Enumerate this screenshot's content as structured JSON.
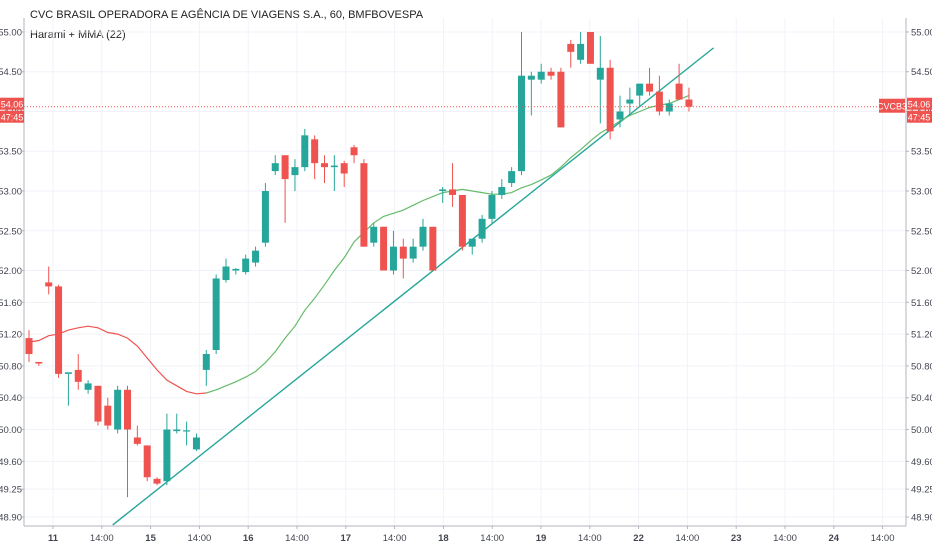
{
  "header": {
    "title": "CVC BRASIL OPERADORA E AGÊNCIA DE VIAGENS S.A., 60, BMFBOVESPA",
    "indicator": "Harami + MMA (22)"
  },
  "colors": {
    "up": "#26a69a",
    "down": "#ef5350",
    "ma_before": "#ef5350",
    "ma_after": "#66bb6a",
    "trendline": "#26a69a",
    "price_line": "#ef5350",
    "grid": "#f0f3fa"
  },
  "chart_data": {
    "type": "candlestick",
    "ylim": [
      48.9,
      55.05
    ],
    "yticks": [
      48.9,
      49.25,
      49.6,
      50.0,
      50.4,
      50.8,
      51.2,
      51.6,
      52.0,
      52.5,
      53.0,
      53.5,
      54.0,
      54.5,
      55.0
    ],
    "ytick_labels": [
      "48.90",
      "49.25",
      "49.60",
      "50.00",
      "50.40",
      "50.80",
      "51.20",
      "51.60",
      "52.00",
      "52.50",
      "53.00",
      "53.50",
      "54.00",
      "54.50",
      "55.00"
    ],
    "xtick_labels": [
      {
        "label": "11",
        "bold": true
      },
      {
        "label": "14:00",
        "bold": false
      },
      {
        "label": "15",
        "bold": true
      },
      {
        "label": "14:00",
        "bold": false
      },
      {
        "label": "16",
        "bold": true
      },
      {
        "label": "14:00",
        "bold": false
      },
      {
        "label": "17",
        "bold": true
      },
      {
        "label": "14:00",
        "bold": false
      },
      {
        "label": "18",
        "bold": true
      },
      {
        "label": "14:00",
        "bold": false
      },
      {
        "label": "19",
        "bold": true
      },
      {
        "label": "14:00",
        "bold": false
      },
      {
        "label": "22",
        "bold": true
      },
      {
        "label": "14:00",
        "bold": false
      },
      {
        "label": "23",
        "bold": true
      },
      {
        "label": "14:00",
        "bold": false
      },
      {
        "label": "24",
        "bold": true
      },
      {
        "label": "14:00",
        "bold": false
      }
    ],
    "candles": [
      {
        "o": 51.15,
        "h": 51.25,
        "l": 50.85,
        "c": 50.95
      },
      {
        "o": 50.85,
        "h": 50.85,
        "l": 50.8,
        "c": 50.83
      },
      {
        "o": 51.85,
        "h": 52.05,
        "l": 51.7,
        "c": 51.8
      },
      {
        "o": 51.8,
        "h": 51.82,
        "l": 50.65,
        "c": 50.7
      },
      {
        "o": 50.7,
        "h": 50.7,
        "l": 50.3,
        "c": 50.72
      },
      {
        "o": 50.75,
        "h": 50.95,
        "l": 50.5,
        "c": 50.6
      },
      {
        "o": 50.5,
        "h": 50.62,
        "l": 50.45,
        "c": 50.58
      },
      {
        "o": 50.55,
        "h": 50.55,
        "l": 50.05,
        "c": 50.1
      },
      {
        "o": 50.3,
        "h": 50.4,
        "l": 50.0,
        "c": 50.05
      },
      {
        "o": 50.0,
        "h": 50.55,
        "l": 49.95,
        "c": 50.5
      },
      {
        "o": 50.5,
        "h": 50.55,
        "l": 49.15,
        "c": 50.0
      },
      {
        "o": 49.9,
        "h": 50.05,
        "l": 49.8,
        "c": 49.82
      },
      {
        "o": 49.8,
        "h": 49.8,
        "l": 49.35,
        "c": 49.4
      },
      {
        "o": 49.38,
        "h": 49.4,
        "l": 49.3,
        "c": 49.32
      },
      {
        "o": 49.35,
        "h": 50.2,
        "l": 49.3,
        "c": 50.0
      },
      {
        "o": 49.98,
        "h": 50.2,
        "l": 49.95,
        "c": 50.0
      },
      {
        "o": 49.98,
        "h": 50.1,
        "l": 49.8,
        "c": 49.99
      },
      {
        "o": 49.75,
        "h": 49.95,
        "l": 49.73,
        "c": 49.9
      },
      {
        "o": 50.75,
        "h": 51.0,
        "l": 50.55,
        "c": 50.95
      },
      {
        "o": 51.0,
        "h": 51.95,
        "l": 50.95,
        "c": 51.9
      },
      {
        "o": 51.88,
        "h": 52.15,
        "l": 51.85,
        "c": 52.05
      },
      {
        "o": 52.0,
        "h": 52.03,
        "l": 51.95,
        "c": 52.02
      },
      {
        "o": 51.98,
        "h": 52.2,
        "l": 51.95,
        "c": 52.15
      },
      {
        "o": 52.1,
        "h": 52.3,
        "l": 52.05,
        "c": 52.25
      },
      {
        "o": 52.35,
        "h": 53.1,
        "l": 52.3,
        "c": 53.0
      },
      {
        "o": 53.25,
        "h": 53.45,
        "l": 53.2,
        "c": 53.35
      },
      {
        "o": 53.45,
        "h": 53.45,
        "l": 52.6,
        "c": 53.15
      },
      {
        "o": 53.2,
        "h": 53.4,
        "l": 53.0,
        "c": 53.3
      },
      {
        "o": 53.3,
        "h": 53.78,
        "l": 53.25,
        "c": 53.7
      },
      {
        "o": 53.65,
        "h": 53.7,
        "l": 53.15,
        "c": 53.35
      },
      {
        "o": 53.35,
        "h": 53.45,
        "l": 53.1,
        "c": 53.3
      },
      {
        "o": 53.3,
        "h": 53.45,
        "l": 53.0,
        "c": 53.32
      },
      {
        "o": 53.35,
        "h": 53.38,
        "l": 53.05,
        "c": 53.22
      },
      {
        "o": 53.55,
        "h": 53.58,
        "l": 53.35,
        "c": 53.45
      },
      {
        "o": 53.35,
        "h": 53.4,
        "l": 52.3,
        "c": 52.3
      },
      {
        "o": 52.35,
        "h": 52.6,
        "l": 52.3,
        "c": 52.55
      },
      {
        "o": 52.55,
        "h": 52.55,
        "l": 52.0,
        "c": 52.0
      },
      {
        "o": 52.0,
        "h": 52.5,
        "l": 51.95,
        "c": 52.3
      },
      {
        "o": 52.3,
        "h": 52.4,
        "l": 51.9,
        "c": 52.15
      },
      {
        "o": 52.15,
        "h": 52.4,
        "l": 52.1,
        "c": 52.3
      },
      {
        "o": 52.3,
        "h": 52.65,
        "l": 52.25,
        "c": 52.55
      },
      {
        "o": 52.55,
        "h": 52.55,
        "l": 52.0,
        "c": 52.0
      },
      {
        "o": 53.0,
        "h": 53.05,
        "l": 52.85,
        "c": 53.02
      },
      {
        "o": 53.02,
        "h": 53.35,
        "l": 52.8,
        "c": 52.95
      },
      {
        "o": 52.95,
        "h": 52.95,
        "l": 52.25,
        "c": 52.3
      },
      {
        "o": 52.3,
        "h": 52.4,
        "l": 52.2,
        "c": 52.4
      },
      {
        "o": 52.4,
        "h": 52.7,
        "l": 52.35,
        "c": 52.65
      },
      {
        "o": 52.65,
        "h": 53.0,
        "l": 52.6,
        "c": 52.95
      },
      {
        "o": 52.95,
        "h": 53.15,
        "l": 52.9,
        "c": 53.05
      },
      {
        "o": 53.1,
        "h": 53.3,
        "l": 53.05,
        "c": 53.25
      },
      {
        "o": 53.25,
        "h": 55.0,
        "l": 53.2,
        "c": 54.45
      },
      {
        "o": 54.4,
        "h": 54.5,
        "l": 53.95,
        "c": 54.45
      },
      {
        "o": 54.4,
        "h": 54.6,
        "l": 54.35,
        "c": 54.5
      },
      {
        "o": 54.5,
        "h": 54.55,
        "l": 54.4,
        "c": 54.45
      },
      {
        "o": 54.5,
        "h": 54.55,
        "l": 53.8,
        "c": 53.8
      },
      {
        "o": 54.85,
        "h": 54.9,
        "l": 54.55,
        "c": 54.75
      },
      {
        "o": 54.65,
        "h": 55.0,
        "l": 54.6,
        "c": 54.85
      },
      {
        "o": 55.0,
        "h": 55.0,
        "l": 54.6,
        "c": 54.6
      },
      {
        "o": 54.4,
        "h": 54.95,
        "l": 53.85,
        "c": 54.55
      },
      {
        "o": 54.55,
        "h": 54.65,
        "l": 53.65,
        "c": 53.75
      },
      {
        "o": 53.9,
        "h": 54.2,
        "l": 53.8,
        "c": 54.0
      },
      {
        "o": 54.1,
        "h": 54.3,
        "l": 53.95,
        "c": 54.15
      },
      {
        "o": 54.2,
        "h": 54.35,
        "l": 54.05,
        "c": 54.35
      },
      {
        "o": 54.35,
        "h": 54.55,
        "l": 54.2,
        "c": 54.25
      },
      {
        "o": 54.25,
        "h": 54.45,
        "l": 53.95,
        "c": 54.0
      },
      {
        "o": 54.0,
        "h": 54.15,
        "l": 53.95,
        "c": 54.1
      },
      {
        "o": 54.35,
        "h": 54.6,
        "l": 54.15,
        "c": 54.15
      },
      {
        "o": 54.15,
        "h": 54.3,
        "l": 54.0,
        "c": 54.06
      }
    ],
    "ma": [
      51.1,
      51.12,
      51.18,
      51.2,
      51.25,
      51.28,
      51.3,
      51.28,
      51.22,
      51.2,
      51.15,
      51.05,
      50.9,
      50.75,
      50.62,
      50.55,
      50.48,
      50.45,
      50.46,
      50.5,
      50.55,
      50.6,
      50.66,
      50.73,
      50.84,
      50.98,
      51.15,
      51.3,
      51.5,
      51.65,
      51.82,
      52.0,
      52.16,
      52.36,
      52.48,
      52.6,
      52.68,
      52.72,
      52.76,
      52.82,
      52.88,
      52.93,
      52.98,
      53.0,
      53.02,
      53.0,
      52.98,
      52.96,
      52.96,
      52.98,
      53.04,
      53.08,
      53.14,
      53.2,
      53.3,
      53.42,
      53.52,
      53.63,
      53.73,
      53.8,
      53.88,
      53.95,
      54.0,
      54.05,
      54.08,
      54.1,
      54.15,
      54.2
    ],
    "ma_color_switch_index": 18,
    "trendline": [
      {
        "i": 8.5,
        "v": 48.8
      },
      {
        "i": 69.5,
        "v": 54.8
      }
    ],
    "last_price": {
      "value": 54.06,
      "label": "54.06",
      "countdown": "47:45",
      "symbol": "CVCB3"
    }
  }
}
